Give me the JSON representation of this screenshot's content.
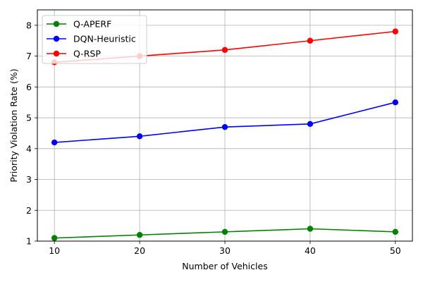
{
  "chart_data": {
    "type": "line",
    "title": "",
    "xlabel": "Number of Vehicles",
    "ylabel": "Priority Violation Rate (%)",
    "x": [
      10,
      20,
      30,
      40,
      50
    ],
    "xticks": [
      10,
      20,
      30,
      40,
      50
    ],
    "yticks": [
      1,
      2,
      3,
      4,
      5,
      6,
      7,
      8
    ],
    "xlim": [
      8,
      52
    ],
    "ylim": [
      1,
      8.5
    ],
    "grid": true,
    "legend_position": "top-left",
    "series": [
      {
        "name": "Q-APERF",
        "color": "#008000",
        "values": [
          1.1,
          1.2,
          1.3,
          1.4,
          1.3
        ]
      },
      {
        "name": "DQN-Heuristic",
        "color": "#0000ff",
        "values": [
          4.2,
          4.4,
          4.7,
          4.8,
          5.5
        ]
      },
      {
        "name": "Q-RSP",
        "color": "#ff0000",
        "values": [
          6.8,
          7.0,
          7.2,
          7.5,
          7.8
        ]
      }
    ]
  }
}
